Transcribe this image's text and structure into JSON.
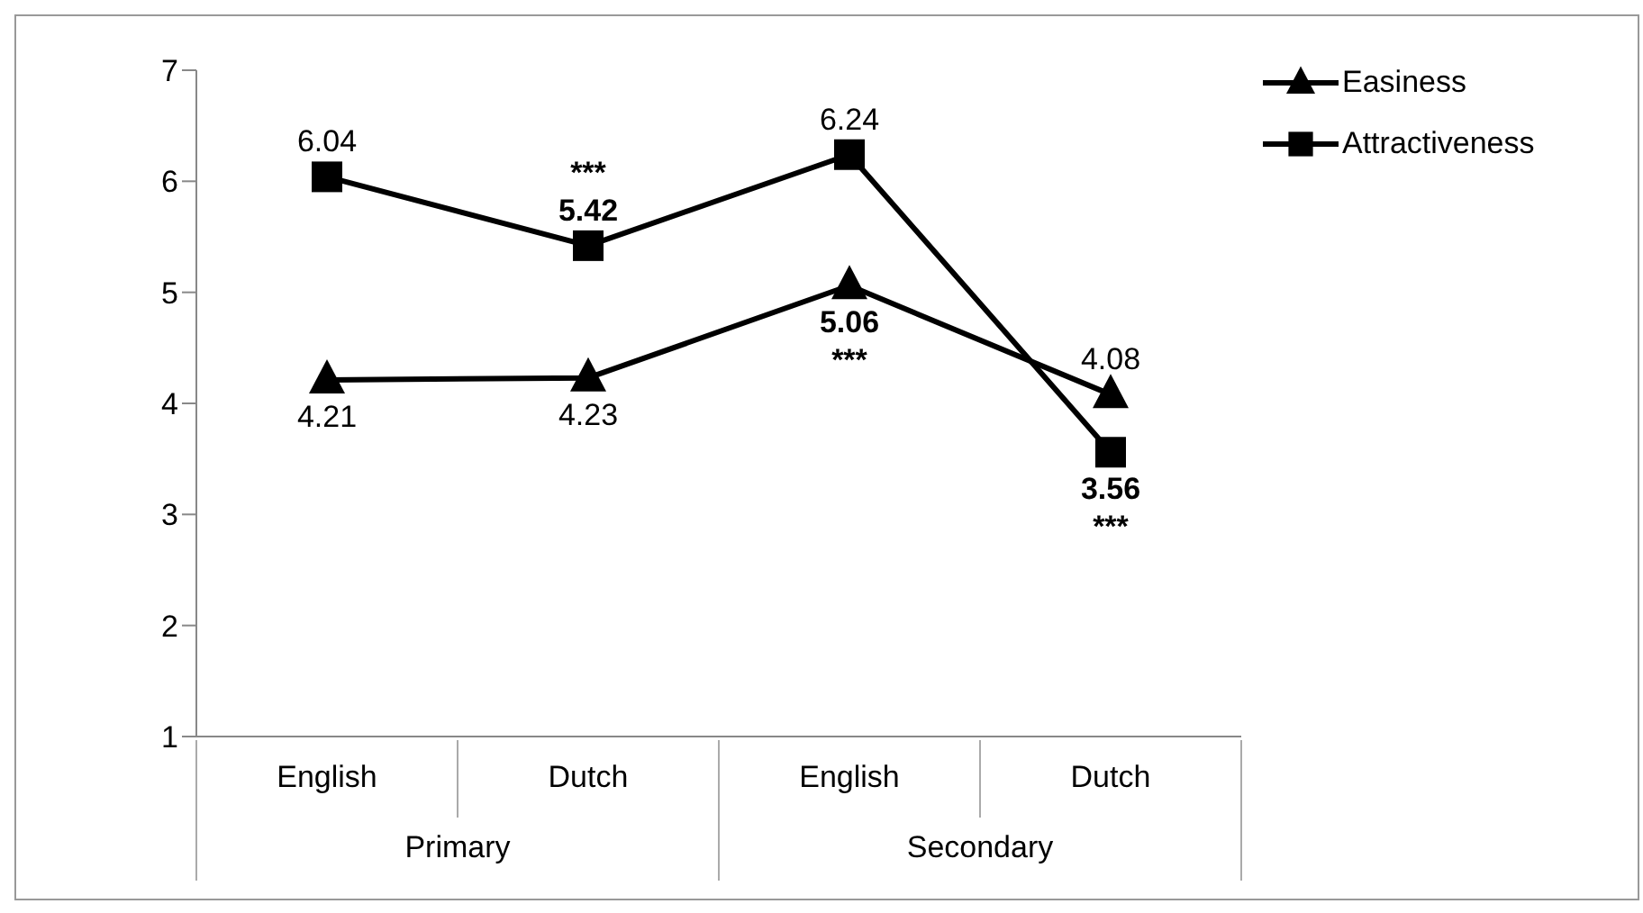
{
  "chart_data": {
    "type": "line",
    "categories": [
      "English",
      "Dutch",
      "English",
      "Dutch"
    ],
    "series": [
      {
        "name": "Easiness",
        "color": "#000000",
        "marker": "triangle",
        "values": [
          4.21,
          4.23,
          5.06,
          4.08
        ],
        "value_labels": [
          "4.21",
          "4.23",
          "5.06\n***",
          "4.08"
        ]
      },
      {
        "name": "Attractiveness",
        "color": "#000000",
        "marker": "square",
        "values": [
          6.04,
          5.42,
          6.24,
          3.56
        ],
        "value_labels": [
          "6.04",
          "***\n5.42",
          "6.24",
          "3.56\n***"
        ]
      }
    ],
    "ylim": [
      1,
      7
    ],
    "yticks": [
      1,
      2,
      3,
      4,
      5,
      6,
      7
    ],
    "grid": false,
    "legend": "top right",
    "annotations": [
      "Primary",
      "Secondary"
    ]
  }
}
